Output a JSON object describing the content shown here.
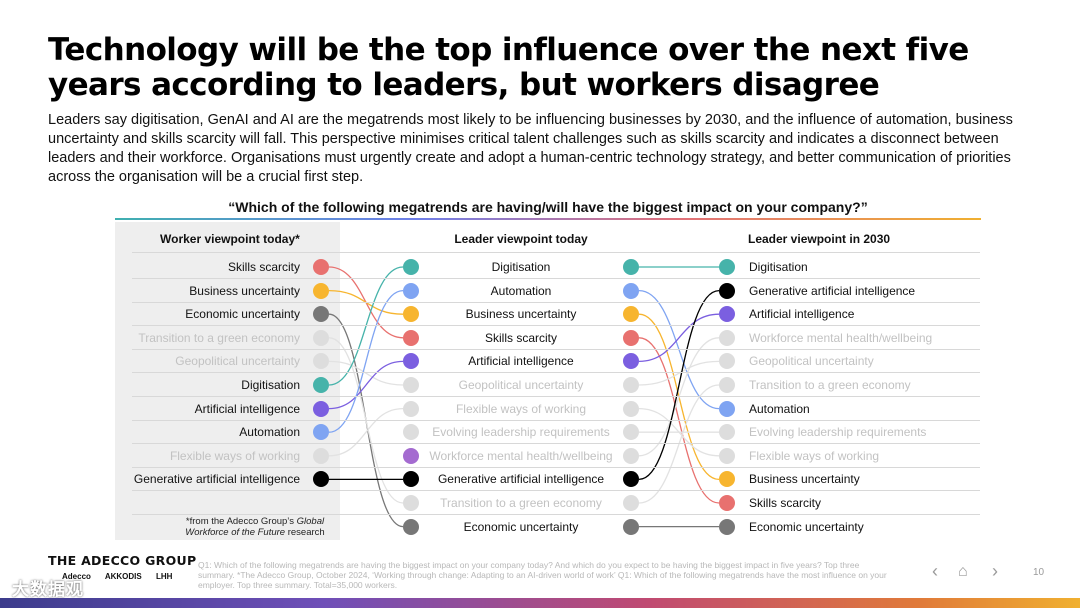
{
  "title": "Technology will be the top influence over the next five years according to leaders, but workers disagree",
  "subtitle": "Leaders say digitisation, GenAI and AI are the megatrends most likely to be influencing businesses by 2030, and the influence of automation, business uncertainty and skills scarcity will fall. This perspective minimises critical talent challenges such as skills scarcity and indicates a disconnect between leaders and their workforce. Organisations must urgently create and adopt a human-centric technology strategy, and better communication of priorities across the organisation will be a crucial first step.",
  "question": "“Which of the following megatrends are having/will have the biggest impact on your company?”",
  "columns": {
    "worker": "Worker viewpoint today*",
    "leader_today": "Leader viewpoint today",
    "leader_2030": "Leader viewpoint in 2030"
  },
  "colors": {
    "skills": "#e8716f",
    "business": "#f7b52f",
    "economic": "#777777",
    "digitisation": "#46b3aa",
    "ai": "#7b5fe0",
    "automation": "#7fa4f2",
    "genai": "#000000",
    "wellbeing": "#a46bd0",
    "grey": "#dddddd"
  },
  "worker_rows": [
    {
      "label": "Skills scarcity",
      "key": "skills",
      "active": true
    },
    {
      "label": "Business uncertainty",
      "key": "business",
      "active": true
    },
    {
      "label": "Economic uncertainty",
      "key": "economic",
      "active": true
    },
    {
      "label": "Transition to a green economy",
      "key": "grey",
      "active": false
    },
    {
      "label": "Geopolitical uncertainty",
      "key": "grey",
      "active": false
    },
    {
      "label": "Digitisation",
      "key": "digitisation",
      "active": true
    },
    {
      "label": "Artificial intelligence",
      "key": "ai",
      "active": true
    },
    {
      "label": "Automation",
      "key": "automation",
      "active": true
    },
    {
      "label": "Flexible ways of working",
      "key": "grey",
      "active": false
    },
    {
      "label": "Generative artificial intelligence",
      "key": "genai",
      "active": true
    }
  ],
  "leader_today_rows": [
    {
      "label": "Digitisation",
      "key": "digitisation",
      "active": true
    },
    {
      "label": "Automation",
      "key": "automation",
      "active": true
    },
    {
      "label": "Business uncertainty",
      "key": "business",
      "active": true
    },
    {
      "label": "Skills scarcity",
      "key": "skills",
      "active": true
    },
    {
      "label": "Artificial intelligence",
      "key": "ai",
      "active": true
    },
    {
      "label": "Geopolitical uncertainty",
      "key": "grey",
      "active": false
    },
    {
      "label": "Flexible ways of working",
      "key": "grey",
      "active": false
    },
    {
      "label": "Evolving leadership requirements",
      "key": "grey",
      "active": false
    },
    {
      "label": "Workforce mental health/wellbeing",
      "key": "wellbeing",
      "active": false
    },
    {
      "label": "Generative artificial intelligence",
      "key": "genai",
      "active": true
    },
    {
      "label": "Transition to a green economy",
      "key": "grey",
      "active": false
    },
    {
      "label": "Economic uncertainty",
      "key": "economic",
      "active": true
    }
  ],
  "leader_2030_rows": [
    {
      "label": "Digitisation",
      "key": "digitisation",
      "active": true
    },
    {
      "label": "Generative artificial intelligence",
      "key": "genai",
      "active": true
    },
    {
      "label": "Artificial intelligence",
      "key": "ai",
      "active": true
    },
    {
      "label": "Workforce mental health/wellbeing",
      "key": "grey",
      "active": false
    },
    {
      "label": "Geopolitical uncertainty",
      "key": "grey",
      "active": false
    },
    {
      "label": "Transition to a green economy",
      "key": "grey",
      "active": false
    },
    {
      "label": "Automation",
      "key": "automation",
      "active": true
    },
    {
      "label": "Evolving leadership requirements",
      "key": "grey",
      "active": false
    },
    {
      "label": "Flexible ways of working",
      "key": "grey",
      "active": false
    },
    {
      "label": "Business uncertainty",
      "key": "business",
      "active": true
    },
    {
      "label": "Skills scarcity",
      "key": "skills",
      "active": true
    },
    {
      "label": "Economic uncertainty",
      "key": "economic",
      "active": true
    }
  ],
  "footnote_pre": "*from the Adecco Group’s ",
  "footnote_em": "Global Workforce of the Future",
  "footnote_post": " research",
  "brand": "THE ADECCO GROUP",
  "sub_brands": [
    "Adecco",
    "AKKODIS",
    "LHH"
  ],
  "source": "Q1: Which of the following megatrends are having the biggest impact on your company today? And which do you expect to be having the biggest impact in five years? Top three summary. *The Adecco Group, October 2024, ‘Working through change: Adapting to an AI-driven world of work’ Q1: Which of the following megatrends have the most influence on your employer. Top three summary. Total=35,000 workers.",
  "nav": {
    "prev": "‹",
    "home": "⌂",
    "next": "›"
  },
  "page_number": "10",
  "watermark": "大数据观"
}
